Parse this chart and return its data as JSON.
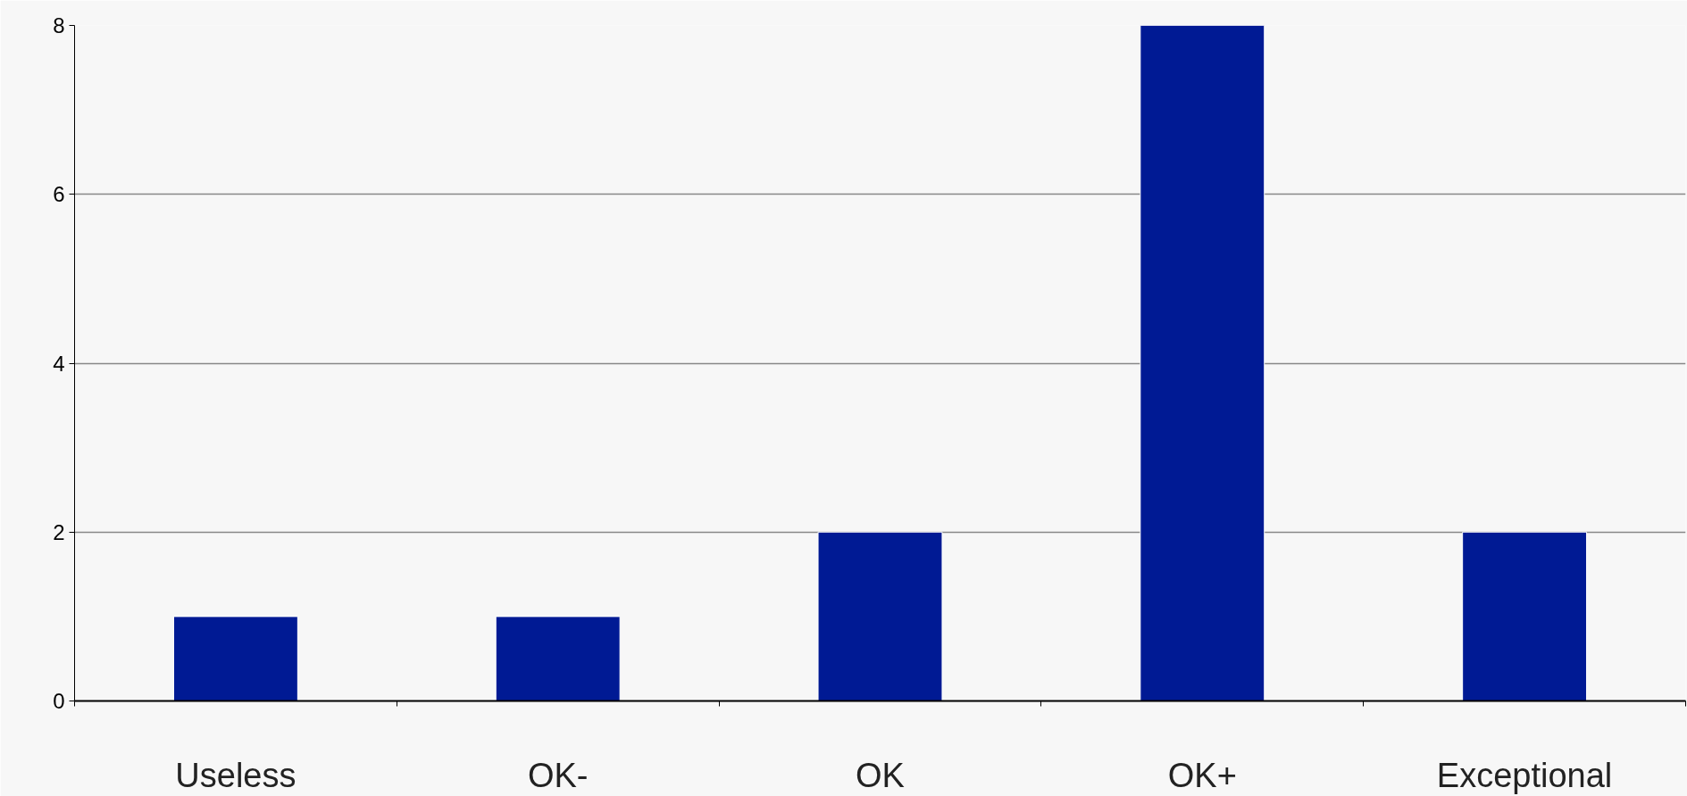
{
  "chart_data": {
    "type": "bar",
    "categories": [
      "Useless",
      "OK-",
      "OK",
      "OK+",
      "Exceptional"
    ],
    "values": [
      1,
      1,
      2,
      8,
      2
    ],
    "color": "#001a94",
    "ylim": [
      0,
      8
    ],
    "yticks": [
      0,
      2,
      4,
      6,
      8
    ],
    "grid": "y"
  }
}
